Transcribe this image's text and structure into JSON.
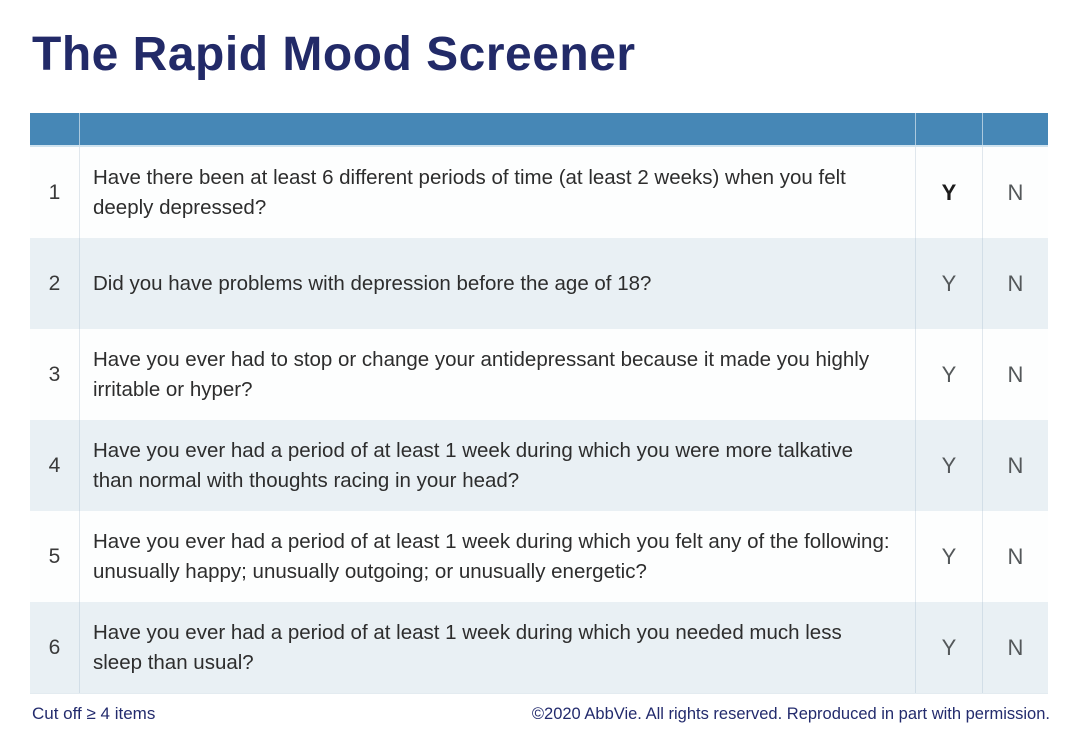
{
  "title": "The Rapid Mood Screener",
  "colors": {
    "title_navy": "#222a68",
    "header_bar_blue": "#4687b6",
    "row_alt_blue": "#e9f0f4",
    "row_white": "#fdfefe",
    "question_text": "#2d2d2d",
    "yn_gray": "#54585a",
    "footer_navy": "#232b6d"
  },
  "table": {
    "rows": [
      {
        "number": "1",
        "question": "Have there been at least 6 different periods of time (at least 2 weeks) when you felt deeply depressed?",
        "yes": "Y",
        "no": "N"
      },
      {
        "number": "2",
        "question": "Did you have problems with depression before the age of 18?",
        "yes": "Y",
        "no": "N"
      },
      {
        "number": "3",
        "question": "Have you ever had to stop or change your antidepressant because it made you highly irritable or hyper?",
        "yes": "Y",
        "no": "N"
      },
      {
        "number": "4",
        "question": "Have you ever had a period of at least 1 week during which you were more talkative than normal with thoughts racing in your head?",
        "yes": "Y",
        "no": "N"
      },
      {
        "number": "5",
        "question": "Have you ever had a period of at least 1 week during which you felt any of the following: unusually happy; unusually outgoing; or unusually energetic?",
        "yes": "Y",
        "no": "N"
      },
      {
        "number": "6",
        "question": "Have you ever had a period of at least 1 week during which you needed much less sleep than usual?",
        "yes": "Y",
        "no": "N"
      }
    ]
  },
  "footer": {
    "cutoff": "Cut off ≥ 4 items",
    "copyright": "©2020 AbbVie. All rights reserved. Reproduced in part with permission."
  }
}
